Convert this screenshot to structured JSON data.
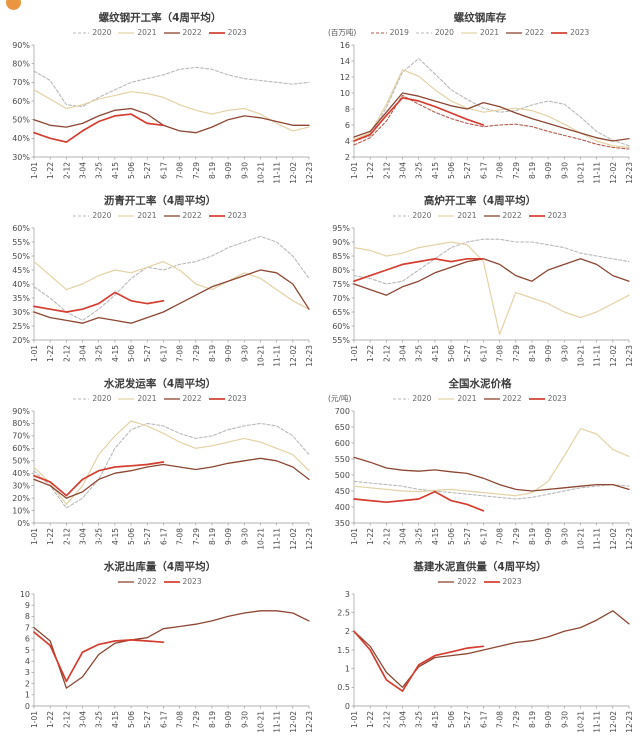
{
  "page": {
    "background": "#ffffff",
    "logo_color": "#ec9540"
  },
  "x_labels": [
    "1-01",
    "1-22",
    "2-12",
    "3-04",
    "3-25",
    "4-15",
    "5-06",
    "5-27",
    "6-17",
    "7-08",
    "7-29",
    "8-19",
    "9-09",
    "9-30",
    "10-21",
    "11-11",
    "12-02",
    "12-23"
  ],
  "chart_data": [
    {
      "type": "line",
      "title": "螺纹钢开工率（4周平均）",
      "ylim": [
        30,
        90
      ],
      "yticks": [
        30,
        40,
        50,
        60,
        70,
        80,
        90
      ],
      "ytick_suffix": "%",
      "categories": [
        "1-01",
        "1-22",
        "2-12",
        "3-04",
        "3-25",
        "4-15",
        "5-06",
        "5-27",
        "6-17",
        "7-08",
        "7-29",
        "8-19",
        "9-09",
        "9-30",
        "10-21",
        "11-11",
        "12-02",
        "12-23"
      ],
      "series": [
        {
          "name": "2020",
          "color": "#b9b9b9",
          "dash": true,
          "width": 1.1,
          "values": [
            76,
            71,
            58,
            57,
            62,
            66,
            70,
            72,
            74,
            77,
            78,
            77,
            74,
            72,
            71,
            70,
            69,
            70
          ]
        },
        {
          "name": "2021",
          "color": "#e3d2a4",
          "dash": false,
          "width": 1.2,
          "values": [
            66,
            61,
            56,
            58,
            61,
            63,
            65,
            64,
            62,
            58,
            55,
            53,
            55,
            56,
            53,
            48,
            44,
            46
          ]
        },
        {
          "name": "2022",
          "color": "#8c4632",
          "dash": false,
          "width": 1.3,
          "values": [
            50,
            47,
            46,
            48,
            52,
            55,
            56,
            53,
            47,
            44,
            43,
            46,
            50,
            52,
            51,
            49,
            47,
            47
          ]
        },
        {
          "name": "2023",
          "color": "#d43d30",
          "dash": false,
          "width": 1.7,
          "values": [
            43,
            40,
            38,
            44,
            49,
            52,
            53,
            48,
            47,
            null,
            null,
            null,
            null,
            null,
            null,
            null,
            null,
            null
          ]
        }
      ]
    },
    {
      "type": "line",
      "title": "螺纹钢库存",
      "unit": "(百万吨)",
      "ylim": [
        2,
        16
      ],
      "yticks": [
        2,
        4,
        6,
        8,
        10,
        12,
        14,
        16
      ],
      "ytick_suffix": "",
      "categories": [
        "1-01",
        "1-22",
        "2-12",
        "3-04",
        "3-25",
        "4-15",
        "5-06",
        "5-27",
        "6-17",
        "7-08",
        "7-29",
        "8-19",
        "9-09",
        "9-30",
        "10-21",
        "11-11",
        "12-02",
        "12-23"
      ],
      "series": [
        {
          "name": "2019",
          "color": "#b25d4f",
          "dash": true,
          "width": 1.1,
          "values": [
            3.5,
            4.4,
            6.5,
            9.7,
            8.6,
            7.6,
            6.8,
            6.2,
            5.8,
            6,
            6.1,
            5.8,
            5.2,
            4.7,
            4.2,
            3.6,
            3.2,
            3
          ]
        },
        {
          "name": "2020",
          "color": "#b9b9b9",
          "dash": true,
          "width": 1.1,
          "values": [
            4,
            4.6,
            8.2,
            12.6,
            14.3,
            12.4,
            10.4,
            9.2,
            8.1,
            7.6,
            7.8,
            8.5,
            9,
            8.6,
            7,
            5.2,
            4.1,
            3.4
          ]
        },
        {
          "name": "2021",
          "color": "#e3d2a4",
          "dash": false,
          "width": 1.2,
          "values": [
            4.2,
            5,
            8.6,
            12.9,
            12.1,
            10.4,
            9,
            8.1,
            7.6,
            7.9,
            8.1,
            7.8,
            7.1,
            6.1,
            5,
            4,
            3.4,
            3.2
          ]
        },
        {
          "name": "2022",
          "color": "#8c4632",
          "dash": false,
          "width": 1.3,
          "values": [
            4.5,
            5.2,
            7.6,
            10,
            9.6,
            9,
            8.4,
            8,
            8.8,
            8.3,
            7.5,
            6.8,
            6.2,
            5.6,
            5,
            4.4,
            4,
            4.3
          ]
        },
        {
          "name": "2023",
          "color": "#d43d30",
          "dash": false,
          "width": 1.7,
          "values": [
            4,
            4.8,
            7.2,
            9.4,
            9,
            8.3,
            7.5,
            6.7,
            6,
            null,
            null,
            null,
            null,
            null,
            null,
            null,
            null,
            null
          ]
        }
      ]
    },
    {
      "type": "line",
      "title": "沥青开工率（4周平均）",
      "ylim": [
        20,
        60
      ],
      "yticks": [
        20,
        25,
        30,
        35,
        40,
        45,
        50,
        55,
        60
      ],
      "ytick_suffix": "%",
      "categories": [
        "1-01",
        "1-22",
        "2-12",
        "3-04",
        "3-25",
        "4-15",
        "5-06",
        "5-27",
        "6-17",
        "7-08",
        "7-29",
        "8-19",
        "9-09",
        "9-30",
        "10-21",
        "11-11",
        "12-02",
        "12-23"
      ],
      "series": [
        {
          "name": "2020",
          "color": "#b9b9b9",
          "dash": true,
          "width": 1.1,
          "values": [
            39,
            35,
            30,
            27,
            31,
            36,
            42,
            46,
            45,
            47,
            48,
            50,
            53,
            55,
            57,
            55,
            50,
            42
          ]
        },
        {
          "name": "2021",
          "color": "#e3d2a4",
          "dash": false,
          "width": 1.2,
          "values": [
            48,
            43,
            38,
            40,
            43,
            45,
            44,
            46,
            48,
            45,
            40,
            38,
            41,
            44,
            42,
            38,
            34,
            31
          ]
        },
        {
          "name": "2022",
          "color": "#8c4632",
          "dash": false,
          "width": 1.3,
          "values": [
            30,
            28,
            27,
            26,
            28,
            27,
            26,
            28,
            30,
            33,
            36,
            39,
            41,
            43,
            45,
            44,
            40,
            31
          ]
        },
        {
          "name": "2023",
          "color": "#d43d30",
          "dash": false,
          "width": 1.7,
          "values": [
            32,
            31,
            30,
            31,
            33,
            37,
            34,
            33,
            34,
            null,
            null,
            null,
            null,
            null,
            null,
            null,
            null,
            null
          ]
        }
      ]
    },
    {
      "type": "line",
      "title": "高炉开工率（4周平均）",
      "ylim": [
        55,
        95
      ],
      "yticks": [
        55,
        60,
        65,
        70,
        75,
        80,
        85,
        90,
        95
      ],
      "ytick_suffix": "%",
      "categories": [
        "1-01",
        "1-22",
        "2-12",
        "3-04",
        "3-25",
        "4-15",
        "5-06",
        "5-27",
        "6-17",
        "7-08",
        "7-29",
        "8-19",
        "9-09",
        "9-30",
        "10-21",
        "11-11",
        "12-02",
        "12-23"
      ],
      "series": [
        {
          "name": "2020",
          "color": "#b9b9b9",
          "dash": true,
          "width": 1.1,
          "values": [
            78,
            77,
            75,
            76,
            80,
            84,
            88,
            90,
            91,
            91,
            90,
            90,
            89,
            88,
            86,
            85,
            84,
            83
          ]
        },
        {
          "name": "2021",
          "color": "#e3d2a4",
          "dash": false,
          "width": 1.2,
          "values": [
            88,
            87,
            85,
            86,
            88,
            89,
            90,
            89,
            83,
            57,
            72,
            70,
            68,
            65,
            63,
            65,
            68,
            71
          ]
        },
        {
          "name": "2022",
          "color": "#8c4632",
          "dash": false,
          "width": 1.3,
          "values": [
            75,
            73,
            71,
            74,
            76,
            79,
            81,
            83,
            84,
            82,
            78,
            76,
            80,
            82,
            84,
            82,
            78,
            76
          ]
        },
        {
          "name": "2023",
          "color": "#d43d30",
          "dash": false,
          "width": 1.7,
          "values": [
            76,
            78,
            80,
            82,
            83,
            84,
            83,
            84,
            84,
            null,
            null,
            null,
            null,
            null,
            null,
            null,
            null,
            null
          ]
        }
      ]
    },
    {
      "type": "line",
      "title": "水泥发运率（4周平均）",
      "ylim": [
        0,
        90
      ],
      "yticks": [
        0,
        10,
        20,
        30,
        40,
        50,
        60,
        70,
        80,
        90
      ],
      "ytick_suffix": "%",
      "categories": [
        "1-01",
        "1-22",
        "2-12",
        "3-04",
        "3-25",
        "4-15",
        "5-06",
        "5-27",
        "6-17",
        "7-08",
        "7-29",
        "8-19",
        "9-09",
        "9-30",
        "10-21",
        "11-11",
        "12-02",
        "12-23"
      ],
      "series": [
        {
          "name": "2020",
          "color": "#b9b9b9",
          "dash": true,
          "width": 1.1,
          "values": [
            42,
            30,
            12,
            20,
            35,
            60,
            75,
            80,
            78,
            72,
            68,
            70,
            75,
            78,
            80,
            78,
            70,
            55
          ]
        },
        {
          "name": "2021",
          "color": "#e3d2a4",
          "dash": false,
          "width": 1.2,
          "values": [
            45,
            32,
            15,
            30,
            55,
            70,
            82,
            78,
            72,
            65,
            60,
            62,
            65,
            68,
            65,
            60,
            55,
            42
          ]
        },
        {
          "name": "2022",
          "color": "#8c4632",
          "dash": false,
          "width": 1.3,
          "values": [
            35,
            30,
            20,
            25,
            35,
            40,
            42,
            45,
            47,
            45,
            43,
            45,
            48,
            50,
            52,
            50,
            45,
            35
          ]
        },
        {
          "name": "2023",
          "color": "#d43d30",
          "dash": false,
          "width": 1.7,
          "values": [
            38,
            33,
            22,
            35,
            42,
            45,
            46,
            47,
            49,
            null,
            null,
            null,
            null,
            null,
            null,
            null,
            null,
            null
          ]
        }
      ]
    },
    {
      "type": "line",
      "title": "全国水泥价格",
      "unit": "(元/吨)",
      "ylim": [
        350,
        700
      ],
      "yticks": [
        350,
        400,
        450,
        500,
        550,
        600,
        650,
        700
      ],
      "ytick_suffix": "",
      "categories": [
        "1-01",
        "1-22",
        "2-12",
        "3-04",
        "3-25",
        "4-15",
        "5-06",
        "5-27",
        "6-17",
        "7-08",
        "7-29",
        "8-19",
        "9-09",
        "9-30",
        "10-21",
        "11-11",
        "12-02",
        "12-23"
      ],
      "series": [
        {
          "name": "2020",
          "color": "#b9b9b9",
          "dash": true,
          "width": 1.1,
          "values": [
            480,
            475,
            470,
            465,
            455,
            450,
            445,
            440,
            435,
            430,
            425,
            430,
            440,
            450,
            460,
            465,
            470,
            465
          ]
        },
        {
          "name": "2021",
          "color": "#e3d2a4",
          "dash": false,
          "width": 1.2,
          "values": [
            465,
            460,
            455,
            450,
            448,
            452,
            455,
            450,
            445,
            440,
            435,
            445,
            480,
            560,
            645,
            628,
            580,
            558
          ]
        },
        {
          "name": "2022",
          "color": "#8c4632",
          "dash": false,
          "width": 1.3,
          "values": [
            555,
            540,
            522,
            515,
            512,
            516,
            510,
            505,
            490,
            470,
            455,
            450,
            455,
            460,
            465,
            470,
            470,
            455
          ]
        },
        {
          "name": "2023",
          "color": "#d43d30",
          "dash": false,
          "width": 1.7,
          "values": [
            425,
            420,
            415,
            420,
            425,
            448,
            420,
            408,
            388,
            null,
            null,
            null,
            null,
            null,
            null,
            null,
            null,
            null
          ]
        }
      ]
    },
    {
      "type": "line",
      "title": "水泥出库量（4周平均）",
      "ylim": [
        0,
        10
      ],
      "yticks": [
        0,
        1,
        2,
        3,
        4,
        5,
        6,
        7,
        8,
        9,
        10
      ],
      "ytick_suffix": "",
      "categories": [
        "1-01",
        "1-22",
        "2-12",
        "3-04",
        "3-25",
        "4-15",
        "5-06",
        "5-27",
        "6-17",
        "7-08",
        "7-29",
        "8-19",
        "9-09",
        "9-30",
        "10-21",
        "11-11",
        "12-02",
        "12-23"
      ],
      "series": [
        {
          "name": "2022",
          "color": "#8c4632",
          "dash": false,
          "width": 1.3,
          "values": [
            7,
            5.8,
            1.6,
            2.6,
            4.6,
            5.6,
            5.9,
            6.1,
            6.9,
            7.1,
            7.3,
            7.6,
            8,
            8.3,
            8.5,
            8.5,
            8.3,
            7.6
          ]
        },
        {
          "name": "2023",
          "color": "#d43d30",
          "dash": false,
          "width": 1.7,
          "values": [
            6.6,
            5.4,
            2.2,
            4.8,
            5.5,
            5.8,
            5.9,
            5.8,
            5.7,
            null,
            null,
            null,
            null,
            null,
            null,
            null,
            null,
            null
          ]
        }
      ]
    },
    {
      "type": "line",
      "title": "基建水泥直供量（4周平均）",
      "ylim": [
        0,
        3
      ],
      "yticks": [
        0,
        0.5,
        1,
        1.5,
        2,
        2.5,
        3
      ],
      "ytick_suffix": "",
      "categories": [
        "1-01",
        "1-22",
        "2-12",
        "3-04",
        "3-25",
        "4-15",
        "5-06",
        "5-27",
        "6-17",
        "7-08",
        "7-29",
        "8-19",
        "9-09",
        "9-30",
        "10-21",
        "11-11",
        "12-02",
        "12-23"
      ],
      "series": [
        {
          "name": "2022",
          "color": "#8c4632",
          "dash": false,
          "width": 1.3,
          "values": [
            2,
            1.6,
            0.9,
            0.5,
            1.05,
            1.3,
            1.35,
            1.4,
            1.5,
            1.6,
            1.7,
            1.75,
            1.85,
            2,
            2.1,
            2.3,
            2.55,
            2.2
          ]
        },
        {
          "name": "2023",
          "color": "#d43d30",
          "dash": false,
          "width": 1.7,
          "values": [
            2,
            1.5,
            0.7,
            0.4,
            1.1,
            1.35,
            1.45,
            1.55,
            1.6,
            null,
            null,
            null,
            null,
            null,
            null,
            null,
            null,
            null
          ]
        }
      ]
    }
  ]
}
